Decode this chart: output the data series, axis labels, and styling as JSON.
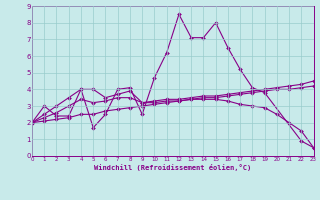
{
  "xlabel": "Windchill (Refroidissement éolien,°C)",
  "bg_color": "#c8eaea",
  "line_color": "#880088",
  "grid_color": "#99cccc",
  "xlim": [
    0,
    23
  ],
  "ylim": [
    0,
    9
  ],
  "xticks": [
    0,
    1,
    2,
    3,
    4,
    5,
    6,
    7,
    8,
    9,
    10,
    11,
    12,
    13,
    14,
    15,
    16,
    17,
    18,
    19,
    20,
    21,
    22,
    23
  ],
  "yticks": [
    0,
    1,
    2,
    3,
    4,
    5,
    6,
    7,
    8,
    9
  ],
  "series": [
    {
      "x": [
        0,
        1,
        2,
        3,
        4,
        5,
        6,
        7,
        8,
        9,
        10,
        11,
        12,
        13,
        14,
        15,
        16,
        17,
        18,
        19,
        22,
        23
      ],
      "y": [
        2.0,
        3.0,
        2.4,
        2.4,
        4.0,
        1.7,
        2.5,
        4.0,
        4.1,
        2.5,
        4.7,
        6.2,
        8.5,
        7.1,
        7.1,
        8.0,
        6.5,
        5.2,
        4.1,
        3.8,
        0.9,
        0.5
      ]
    },
    {
      "x": [
        0,
        1,
        2,
        3,
        4,
        5,
        6,
        7,
        8,
        9,
        10,
        11,
        12,
        13,
        14,
        15,
        16,
        17,
        18,
        19,
        20,
        21,
        22,
        23
      ],
      "y": [
        2.0,
        2.1,
        2.2,
        2.3,
        2.5,
        2.5,
        2.7,
        2.8,
        2.9,
        3.0,
        3.1,
        3.2,
        3.3,
        3.4,
        3.5,
        3.5,
        3.6,
        3.7,
        3.8,
        3.9,
        4.0,
        4.0,
        4.1,
        4.2
      ]
    },
    {
      "x": [
        0,
        1,
        2,
        3,
        4,
        5,
        6,
        7,
        8,
        9,
        10,
        11,
        12,
        13,
        14,
        15,
        16,
        17,
        18,
        19,
        20,
        21,
        22,
        23
      ],
      "y": [
        2.0,
        2.3,
        2.6,
        3.0,
        3.4,
        3.2,
        3.3,
        3.5,
        3.5,
        3.2,
        3.3,
        3.4,
        3.4,
        3.5,
        3.6,
        3.6,
        3.7,
        3.8,
        3.9,
        4.0,
        4.1,
        4.2,
        4.3,
        4.5
      ]
    },
    {
      "x": [
        0,
        1,
        2,
        3,
        4,
        5,
        6,
        7,
        8,
        9,
        10,
        11,
        12,
        13,
        14,
        15,
        16,
        17,
        18,
        19,
        20,
        21,
        22,
        23
      ],
      "y": [
        2.0,
        2.5,
        3.0,
        3.5,
        4.0,
        4.0,
        3.5,
        3.7,
        3.9,
        3.2,
        3.2,
        3.3,
        3.3,
        3.4,
        3.4,
        3.4,
        3.3,
        3.1,
        3.0,
        2.9,
        2.5,
        2.0,
        1.5,
        0.5
      ]
    }
  ]
}
